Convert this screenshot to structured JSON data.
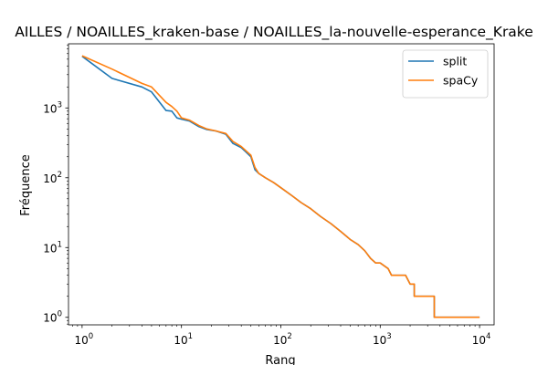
{
  "chart_data": {
    "type": "line",
    "title": "AILLES / NOAILLES_kraken-base / NOAILLES_la-nouvelle-esperance_Krake",
    "xlabel": "Rang",
    "ylabel": "Fréquence",
    "xscale": "log",
    "yscale": "log",
    "xlim": [
      0.73,
      14000
    ],
    "ylim": [
      0.78,
      8300
    ],
    "xticks": [
      {
        "value": 1,
        "base": "10",
        "exp": "0"
      },
      {
        "value": 10,
        "base": "10",
        "exp": "1"
      },
      {
        "value": 100,
        "base": "10",
        "exp": "2"
      },
      {
        "value": 1000,
        "base": "10",
        "exp": "3"
      },
      {
        "value": 10000,
        "base": "10",
        "exp": "4"
      }
    ],
    "yticks": [
      {
        "value": 1,
        "base": "10",
        "exp": "0"
      },
      {
        "value": 10,
        "base": "10",
        "exp": "1"
      },
      {
        "value": 100,
        "base": "10",
        "exp": "2"
      },
      {
        "value": 1000,
        "base": "10",
        "exp": "3"
      }
    ],
    "grid": false,
    "legend_position": "top-right",
    "series": [
      {
        "name": "split",
        "color": "#1f77b4",
        "points": [
          [
            1,
            5500
          ],
          [
            2,
            2650
          ],
          [
            4,
            2000
          ],
          [
            5,
            1700
          ],
          [
            7,
            920
          ],
          [
            8,
            900
          ],
          [
            9,
            720
          ],
          [
            10,
            690
          ],
          [
            12,
            650
          ],
          [
            15,
            540
          ],
          [
            18,
            490
          ],
          [
            22,
            470
          ],
          [
            28,
            420
          ],
          [
            33,
            310
          ],
          [
            40,
            270
          ],
          [
            45,
            230
          ],
          [
            50,
            200
          ],
          [
            55,
            130
          ],
          [
            60,
            115
          ],
          [
            70,
            100
          ],
          [
            85,
            85
          ],
          [
            100,
            72
          ],
          [
            130,
            55
          ],
          [
            160,
            44
          ],
          [
            200,
            36
          ],
          [
            250,
            28
          ],
          [
            320,
            22
          ],
          [
            400,
            17
          ],
          [
            500,
            13
          ],
          [
            600,
            11
          ],
          [
            700,
            9
          ],
          [
            800,
            7
          ],
          [
            900,
            6
          ],
          [
            1000,
            6
          ],
          [
            1200,
            5
          ],
          [
            1300,
            4
          ],
          [
            1800,
            4
          ],
          [
            2000,
            3
          ],
          [
            2200,
            3
          ],
          [
            2200,
            2
          ],
          [
            3500,
            2
          ],
          [
            3500,
            1
          ],
          [
            10000,
            1
          ]
        ]
      },
      {
        "name": "spaCy",
        "color": "#ff7f0e",
        "points": [
          [
            1,
            5600
          ],
          [
            2,
            3600
          ],
          [
            4,
            2250
          ],
          [
            5,
            2000
          ],
          [
            7,
            1200
          ],
          [
            8,
            1050
          ],
          [
            9,
            900
          ],
          [
            10,
            720
          ],
          [
            12,
            670
          ],
          [
            15,
            560
          ],
          [
            18,
            500
          ],
          [
            22,
            470
          ],
          [
            28,
            430
          ],
          [
            33,
            330
          ],
          [
            40,
            280
          ],
          [
            45,
            240
          ],
          [
            50,
            210
          ],
          [
            55,
            140
          ],
          [
            60,
            115
          ],
          [
            70,
            100
          ],
          [
            85,
            85
          ],
          [
            100,
            72
          ],
          [
            130,
            55
          ],
          [
            160,
            44
          ],
          [
            200,
            36
          ],
          [
            250,
            28
          ],
          [
            320,
            22
          ],
          [
            400,
            17
          ],
          [
            500,
            13
          ],
          [
            600,
            11
          ],
          [
            700,
            9
          ],
          [
            800,
            7
          ],
          [
            900,
            6
          ],
          [
            1000,
            6
          ],
          [
            1200,
            5
          ],
          [
            1300,
            4
          ],
          [
            1800,
            4
          ],
          [
            2000,
            3
          ],
          [
            2200,
            3
          ],
          [
            2200,
            2
          ],
          [
            3500,
            2
          ],
          [
            3500,
            1
          ],
          [
            10000,
            1
          ]
        ]
      }
    ]
  }
}
